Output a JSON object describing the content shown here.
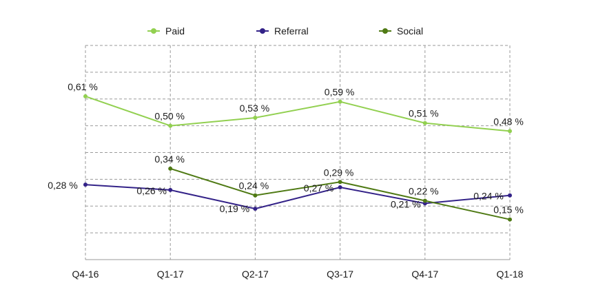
{
  "chart_data": {
    "type": "line",
    "categories": [
      "Q4-16",
      "Q1-17",
      "Q2-17",
      "Q3-17",
      "Q4-17",
      "Q1-18"
    ],
    "series": [
      {
        "name": "Paid",
        "color": "#92d050",
        "values": [
          0.61,
          0.5,
          0.53,
          0.59,
          0.51,
          0.48
        ],
        "labels": [
          "0,61 %",
          "0,50 %",
          "0,53 %",
          "0,59 %",
          "0,51 %",
          "0,48 %"
        ]
      },
      {
        "name": "Referral",
        "color": "#332288",
        "values": [
          0.28,
          0.26,
          0.19,
          0.27,
          0.21,
          0.24
        ],
        "labels": [
          "0,28 %",
          "0,26 %",
          "0,19 %",
          "0,27 %",
          "0,21 %",
          "0,24 %"
        ]
      },
      {
        "name": "Social",
        "color": "#4f7a14",
        "values": [
          null,
          0.34,
          0.24,
          0.29,
          0.22,
          0.15
        ],
        "labels": [
          null,
          "0,34 %",
          "0,24 %",
          "0,29 %",
          "0,22 %",
          "0,15 %"
        ]
      }
    ],
    "ylim": [
      0,
      0.8
    ],
    "y_grid_step": 0.1,
    "grid": true,
    "legend_position": "top"
  }
}
